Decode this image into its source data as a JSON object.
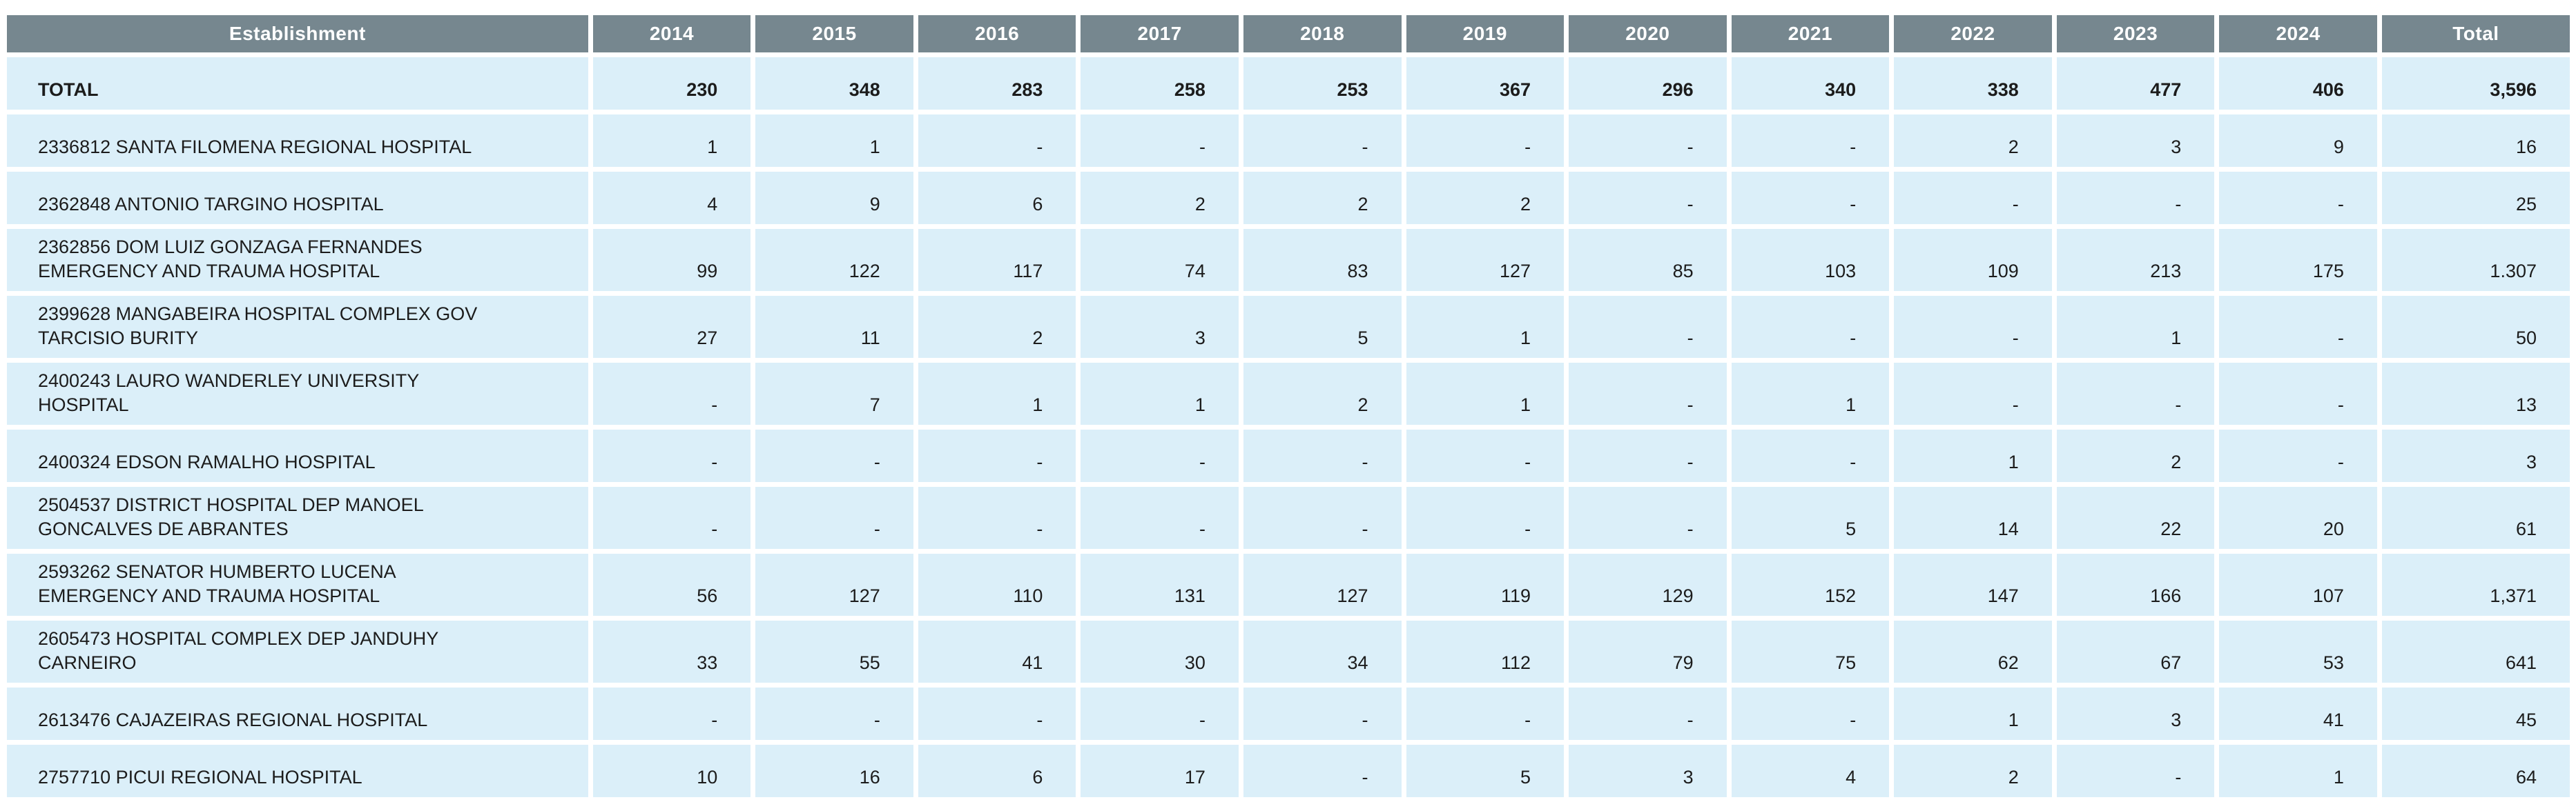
{
  "colors": {
    "header_bg": "#76878F",
    "header_text": "#FFFFFF",
    "row_bg": "#DBEFF9",
    "cell_text": "#1C1C1C",
    "page_bg": "#FFFFFF"
  },
  "chart_data": {
    "type": "table",
    "columns": [
      "Establishment",
      "2014",
      "2015",
      "2016",
      "2017",
      "2018",
      "2019",
      "2020",
      "2021",
      "2022",
      "2023",
      "2024",
      "Total"
    ],
    "rows": [
      {
        "label": "TOTAL",
        "bold": true,
        "values": [
          "230",
          "348",
          "283",
          "258",
          "253",
          "367",
          "296",
          "340",
          "338",
          "477",
          "406",
          "3,596"
        ]
      },
      {
        "label": "2336812 SANTA FILOMENA REGIONAL HOSPITAL",
        "bold": false,
        "values": [
          "1",
          "1",
          "-",
          "-",
          "-",
          "-",
          "-",
          "-",
          "2",
          "3",
          "9",
          "16"
        ]
      },
      {
        "label": "2362848 ANTONIO TARGINO HOSPITAL",
        "bold": false,
        "values": [
          "4",
          "9",
          "6",
          "2",
          "2",
          "2",
          "-",
          "-",
          "-",
          "-",
          "-",
          "25"
        ]
      },
      {
        "label": "2362856 DOM LUIZ GONZAGA FERNANDES\nEMERGENCY AND TRAUMA HOSPITAL",
        "bold": false,
        "values": [
          "99",
          "122",
          "117",
          "74",
          "83",
          "127",
          "85",
          "103",
          "109",
          "213",
          "175",
          "1.307"
        ]
      },
      {
        "label": "2399628 MANGABEIRA HOSPITAL COMPLEX GOV\nTARCISIO BURITY",
        "bold": false,
        "values": [
          "27",
          "11",
          "2",
          "3",
          "5",
          "1",
          "-",
          "-",
          "-",
          "1",
          "-",
          "50"
        ]
      },
      {
        "label": "2400243 LAURO WANDERLEY UNIVERSITY\nHOSPITAL",
        "bold": false,
        "values": [
          "-",
          "7",
          "1",
          "1",
          "2",
          "1",
          "-",
          "1",
          "-",
          "-",
          "-",
          "13"
        ]
      },
      {
        "label": "2400324 EDSON RAMALHO HOSPITAL",
        "bold": false,
        "values": [
          "-",
          "-",
          "-",
          "-",
          "-",
          "-",
          "-",
          "-",
          "1",
          "2",
          "-",
          "3"
        ]
      },
      {
        "label": "2504537 DISTRICT HOSPITAL DEP MANOEL\nGONCALVES DE ABRANTES",
        "bold": false,
        "values": [
          "-",
          "-",
          "-",
          "-",
          "-",
          "-",
          "-",
          "5",
          "14",
          "22",
          "20",
          "61"
        ]
      },
      {
        "label": "2593262 SENATOR HUMBERTO LUCENA\nEMERGENCY AND TRAUMA HOSPITAL",
        "bold": false,
        "values": [
          "56",
          "127",
          "110",
          "131",
          "127",
          "119",
          "129",
          "152",
          "147",
          "166",
          "107",
          "1,371"
        ]
      },
      {
        "label": "2605473 HOSPITAL COMPLEX DEP JANDUHY\nCARNEIRO",
        "bold": false,
        "values": [
          "33",
          "55",
          "41",
          "30",
          "34",
          "112",
          "79",
          "75",
          "62",
          "67",
          "53",
          "641"
        ]
      },
      {
        "label": "2613476 CAJAZEIRAS REGIONAL HOSPITAL",
        "bold": false,
        "values": [
          "-",
          "-",
          "-",
          "-",
          "-",
          "-",
          "-",
          "-",
          "1",
          "3",
          "41",
          "45"
        ]
      },
      {
        "label": "2757710 PICUI REGIONAL HOSPITAL",
        "bold": false,
        "values": [
          "10",
          "16",
          "6",
          "17",
          "-",
          "5",
          "3",
          "4",
          "2",
          "-",
          "1",
          "64"
        ]
      }
    ]
  }
}
